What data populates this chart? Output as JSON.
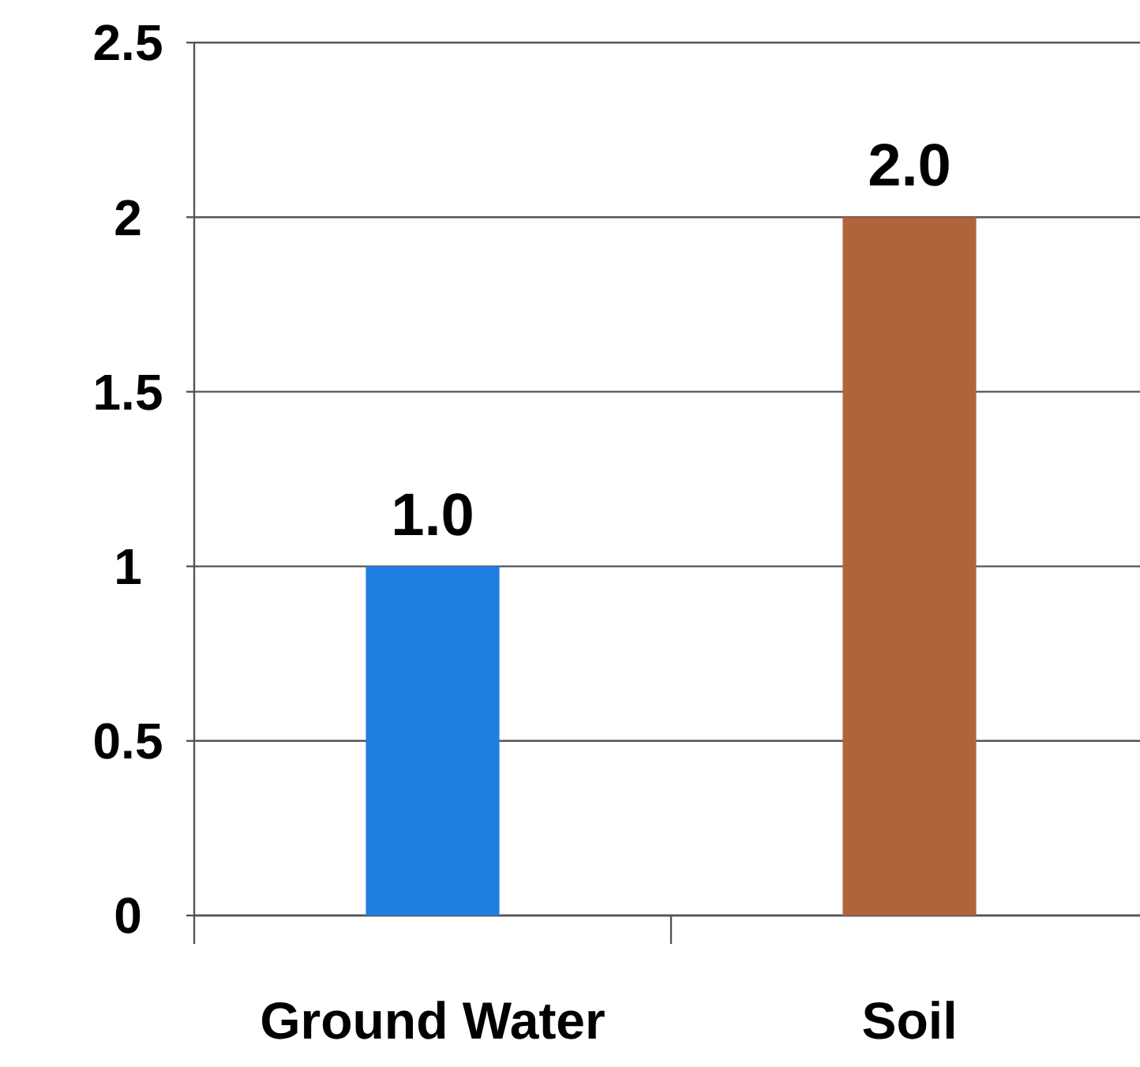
{
  "chart_data": {
    "type": "bar",
    "categories": [
      "Ground Water",
      "Soil"
    ],
    "values": [
      1,
      2
    ],
    "colors": [
      "#1f7fe0",
      "#b0643a"
    ],
    "value_labels": [
      "1.0",
      "2.0"
    ],
    "ylim": [
      0,
      2.5
    ],
    "yticks": [
      0,
      0.5,
      1,
      1.5,
      2,
      2.5
    ],
    "grid": "y"
  }
}
